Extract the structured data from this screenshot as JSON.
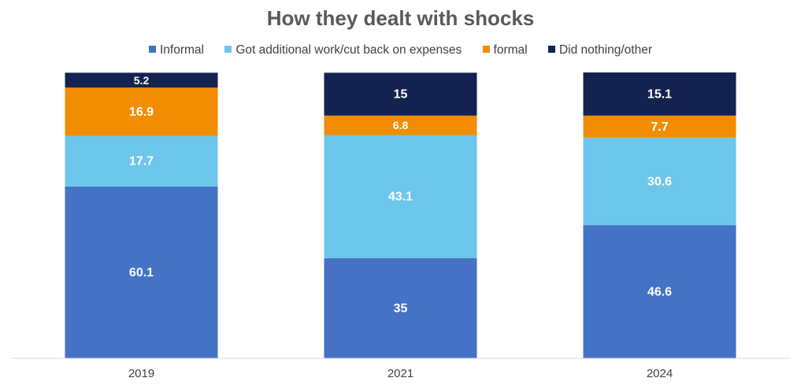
{
  "chart_data": {
    "type": "bar",
    "stacked": true,
    "title": "How they dealt with shocks",
    "xlabel": "",
    "ylabel": "",
    "ylim": [
      0,
      100
    ],
    "grid": false,
    "legend_position": "top",
    "categories": [
      "2019",
      "2021",
      "2024"
    ],
    "series": [
      {
        "name": "Informal",
        "color": "#4472C4",
        "values": [
          60.1,
          35,
          46.6
        ],
        "labels": [
          "60.1",
          "35",
          "46.6"
        ]
      },
      {
        "name": "Got additional work/cut back on expenses",
        "color": "#6CC5EB",
        "values": [
          17.7,
          43.1,
          30.6
        ],
        "labels": [
          "17.7",
          "43.1",
          "30.6"
        ]
      },
      {
        "name": "formal",
        "color": "#F28C00",
        "values": [
          16.9,
          6.8,
          7.7
        ],
        "labels": [
          "16.9",
          "6.8",
          "7.7"
        ]
      },
      {
        "name": "Did nothing/other",
        "color": "#13224F",
        "values": [
          5.2,
          15,
          15.1
        ],
        "labels": [
          "5.2",
          "15",
          "15.1"
        ]
      }
    ]
  }
}
